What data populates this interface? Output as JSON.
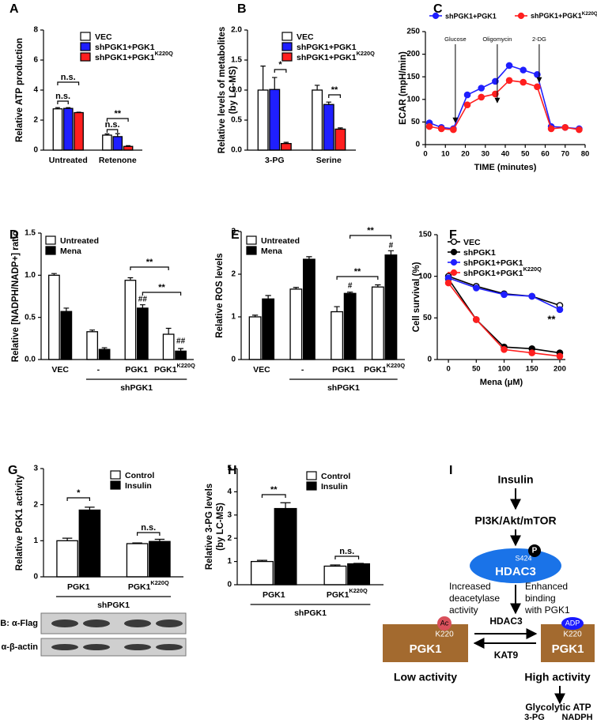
{
  "panel_labels": [
    "A",
    "B",
    "C",
    "D",
    "E",
    "F",
    "G",
    "H",
    "I"
  ],
  "chart_data": [
    {
      "type": "bar",
      "ylabel": "Relative ATP production",
      "categories": [
        "Untreated",
        "Retenone"
      ],
      "series": [
        {
          "name": "VEC",
          "color": "#ffffff",
          "values": [
            2.75,
            1.0
          ],
          "errors": [
            0.08,
            0.08
          ]
        },
        {
          "name": "shPGK1+PGK1",
          "color": "#1f1fff",
          "values": [
            2.78,
            0.9
          ],
          "errors": [
            0.05,
            0.2
          ]
        },
        {
          "name": "shPGK1+PGK1K220Q",
          "color": "#ff1f1f",
          "values": [
            2.5,
            0.25
          ],
          "errors": [
            0.03,
            0.05
          ]
        }
      ],
      "ylim": [
        0,
        8
      ],
      "yticks": [
        0,
        2,
        4,
        6,
        8
      ],
      "legend": "upper right",
      "annotations": [
        "n.s.",
        "n.s.",
        "n.s.",
        "**"
      ]
    },
    {
      "type": "bar",
      "ylabel": [
        "Relative levels of metabolites",
        "(by LC-MS)"
      ],
      "categories": [
        "3-PG",
        "Serine"
      ],
      "series": [
        {
          "name": "VEC",
          "color": "#ffffff",
          "values": [
            1.0,
            1.0
          ],
          "errors": [
            0.4,
            0.08
          ]
        },
        {
          "name": "shPGK1+PGK1",
          "color": "#1f1fff",
          "values": [
            1.01,
            0.76
          ],
          "errors": [
            0.2,
            0.04
          ]
        },
        {
          "name": "shPGK1+PGK1K220Q",
          "color": "#ff1f1f",
          "values": [
            0.11,
            0.35
          ],
          "errors": [
            0.02,
            0.02
          ]
        }
      ],
      "ylim": [
        0,
        2
      ],
      "yticks": [
        {
          "value": 0,
          "label": "0.0"
        },
        {
          "value": 0.5,
          "label": "0.5"
        },
        {
          "value": 1,
          "label": "1.0"
        },
        {
          "value": 1.5,
          "label": "1.5"
        },
        {
          "value": 2,
          "label": "2.0"
        }
      ],
      "legend": "upper right",
      "annotations": [
        "*",
        "**"
      ]
    },
    {
      "type": "line",
      "xlabel": "TIME (minutes)",
      "ylabel": "ECAR (mpH/min)",
      "x": [
        2,
        8,
        14,
        21,
        28,
        35,
        42,
        49,
        56,
        63,
        70,
        77
      ],
      "series": [
        {
          "name": "shPGK1+PGK1",
          "color": "#1f1fff",
          "values": [
            48,
            38,
            35,
            110,
            125,
            140,
            175,
            165,
            155,
            40,
            38,
            35
          ]
        },
        {
          "name": "shPGK1+PGK1K220Q",
          "color": "#ff1f1f",
          "values": [
            40,
            35,
            33,
            88,
            105,
            112,
            142,
            138,
            128,
            35,
            38,
            33
          ]
        }
      ],
      "xlim": [
        0,
        80
      ],
      "xticks": [
        0,
        10,
        20,
        30,
        40,
        50,
        60,
        70,
        80
      ],
      "ylim": [
        0,
        250
      ],
      "yticks": [
        0,
        50,
        100,
        150,
        200,
        250
      ],
      "legend": "top",
      "annotations": [
        "Glucose",
        "Oligomycin",
        "2-DG"
      ]
    },
    {
      "type": "bar",
      "ylabel": "Relative [NADPH/NADP+] ratio",
      "categories": [
        "VEC",
        "-",
        "PGK1",
        "PGK1K220Q"
      ],
      "group_label": "shPGK1",
      "series": [
        {
          "name": "Untreated",
          "color": "#ffffff",
          "values": [
            1.0,
            0.33,
            0.94,
            0.3
          ],
          "errors": [
            0.02,
            0.02,
            0.03,
            0.07
          ]
        },
        {
          "name": "Mena",
          "color": "#000000",
          "values": [
            0.57,
            0.12,
            0.61,
            0.1
          ],
          "errors": [
            0.04,
            0.02,
            0.04,
            0.03
          ]
        }
      ],
      "ylim": [
        0,
        1.5
      ],
      "yticks": [
        {
          "value": 0,
          "label": "0.0"
        },
        {
          "value": 0.5,
          "label": "0.5"
        },
        {
          "value": 1,
          "label": "1.0"
        },
        {
          "value": 1.5,
          "label": "1.5"
        }
      ],
      "legend": "upper left",
      "annotations": [
        "**",
        "**",
        "##",
        "##"
      ]
    },
    {
      "type": "bar",
      "ylabel": "Relative ROS levels",
      "categories": [
        "VEC",
        "-",
        "PGK1",
        "PGK1K220Q"
      ],
      "group_label": "shPGK1",
      "series": [
        {
          "name": "Untreated",
          "color": "#ffffff",
          "values": [
            1.0,
            1.65,
            1.12,
            1.7
          ],
          "errors": [
            0.04,
            0.04,
            0.12,
            0.05
          ]
        },
        {
          "name": "Mena",
          "color": "#000000",
          "values": [
            1.42,
            2.35,
            1.55,
            2.45
          ],
          "errors": [
            0.08,
            0.06,
            0.03,
            0.1
          ]
        }
      ],
      "ylim": [
        0,
        3
      ],
      "yticks": [
        0,
        1,
        2,
        3
      ],
      "legend": "upper left",
      "annotations": [
        "**",
        "**",
        "#",
        "#"
      ]
    },
    {
      "type": "line",
      "xlabel": "Mena (μM)",
      "ylabel": "Cell survival (%)",
      "x": [
        0,
        50,
        100,
        150,
        200
      ],
      "series": [
        {
          "name": "VEC",
          "color": "#000000",
          "marker": "open",
          "values": [
            100,
            88,
            79,
            76,
            65
          ]
        },
        {
          "name": "shPGK1",
          "color": "#000000",
          "values": [
            97,
            48,
            15,
            13,
            8
          ]
        },
        {
          "name": "shPGK1+PGK1",
          "color": "#1f1fff",
          "values": [
            98,
            86,
            78,
            76,
            60
          ]
        },
        {
          "name": "shPGK1+PGK1K220Q",
          "color": "#ff1f1f",
          "values": [
            92,
            48,
            12,
            8,
            4
          ]
        }
      ],
      "xlim": [
        -20,
        210
      ],
      "xticks": [
        0,
        50,
        100,
        150,
        200
      ],
      "ylim": [
        0,
        150
      ],
      "yticks": [
        0,
        50,
        100,
        150
      ],
      "legend": "upper right",
      "annotations": [
        "**"
      ]
    },
    {
      "type": "bar",
      "ylabel": "Relative PGK1 activity",
      "categories": [
        "PGK1",
        "PGK1K220Q"
      ],
      "group_label": "shPGK1",
      "series": [
        {
          "name": "Control",
          "color": "#ffffff",
          "values": [
            1.0,
            0.92
          ],
          "errors": [
            0.07,
            0.02
          ]
        },
        {
          "name": "Insulin",
          "color": "#000000",
          "values": [
            1.85,
            0.98
          ],
          "errors": [
            0.08,
            0.06
          ]
        }
      ],
      "ylim": [
        0,
        3
      ],
      "yticks": [
        0,
        1,
        2,
        3
      ],
      "legend": "upper right",
      "annotations": [
        "*",
        "n.s."
      ]
    },
    {
      "type": "bar",
      "ylabel": [
        "Relative 3-PG levels",
        "(by LC-MS)"
      ],
      "categories": [
        "PGK1",
        "PGK1K220Q"
      ],
      "group_label": "shPGK1",
      "series": [
        {
          "name": "Control",
          "color": "#ffffff",
          "values": [
            1.0,
            0.8
          ],
          "errors": [
            0.05,
            0.05
          ]
        },
        {
          "name": "Insulin",
          "color": "#000000",
          "values": [
            3.28,
            0.9
          ],
          "errors": [
            0.25,
            0.02
          ]
        }
      ],
      "ylim": [
        0,
        5
      ],
      "yticks": [
        0,
        1,
        2,
        3,
        4,
        5
      ],
      "legend": "upper right",
      "annotations": [
        "**",
        "n.s."
      ]
    }
  ],
  "blot": {
    "rows": [
      "IB: α-Flag",
      "IB: α-β-actin"
    ]
  },
  "diagram": {
    "input": "Insulin",
    "pathway": "PI3K/Akt/mTOR",
    "phospho": "P",
    "site": "S424",
    "enzyme": "HDAC3",
    "left_note": [
      "Increased",
      "deacetylase",
      "activity"
    ],
    "right_note": [
      "Enhanced",
      "binding",
      "with PGK1"
    ],
    "forward": "HDAC3",
    "reverse": "KAT9",
    "left_mod": "Ac",
    "left_site": "K220",
    "left_protein": "PGK1",
    "left_state": "Low activity",
    "right_mod": "ADP",
    "right_site": "K220",
    "right_protein": "PGK1",
    "right_state": "High activity",
    "outputs": [
      "Glycolytic ATP",
      "3-PG",
      "NADPH"
    ]
  }
}
